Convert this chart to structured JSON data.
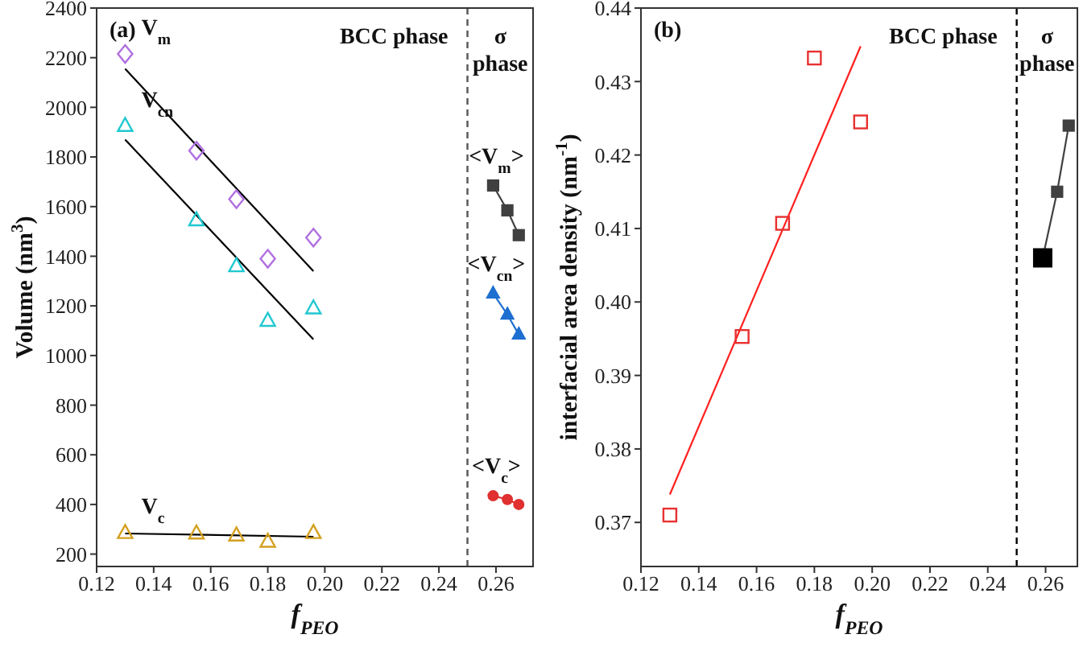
{
  "chart_data": [
    {
      "type": "scatter",
      "title": "(a)",
      "xlabel": "f$_{PEO}$",
      "ylabel": "Volume (nm$^{3}$)",
      "xlim": [
        0.12,
        0.273
      ],
      "ylim": [
        150,
        2400
      ],
      "xticks": [
        0.12,
        0.14,
        0.16,
        0.18,
        {
          "value": 0.2,
          "label": "0.20"
        },
        0.22,
        0.24,
        0.26
      ],
      "yticks": [
        200,
        400,
        600,
        800,
        1000,
        1200,
        1400,
        1600,
        1800,
        2000,
        2200,
        2400
      ],
      "ref_lines": [
        {
          "axis": "x",
          "value": 0.25,
          "label": null,
          "color": "#555555",
          "line_style": "dashed"
        }
      ],
      "annotations": [
        "BCC phase",
        "σ phase"
      ],
      "series": [
        {
          "name": "V$_{m}$",
          "marker": "diamond",
          "color": "#b070e0",
          "x": [
            0.13,
            0.155,
            0.169,
            0.18,
            0.196
          ],
          "values": [
            2215,
            1825,
            1630,
            1390,
            1475
          ]
        },
        {
          "name": "V$_{cn}$",
          "marker": "triangle",
          "color": "#20c8d0",
          "x": [
            0.13,
            0.155,
            0.169,
            0.18,
            0.196
          ],
          "values": [
            1925,
            1545,
            1360,
            1140,
            1190
          ]
        },
        {
          "name": "V$_{c}$",
          "marker": "triangle",
          "color": "#d4a020",
          "x": [
            0.13,
            0.155,
            0.169,
            0.18,
            0.196
          ],
          "values": [
            285,
            283,
            275,
            250,
            285
          ]
        },
        {
          "type": "line",
          "marker": "none",
          "color": "#000000",
          "x": [
            0.13,
            0.196
          ],
          "values": [
            2155,
            1340
          ]
        },
        {
          "type": "line",
          "marker": "none",
          "color": "#000000",
          "x": [
            0.13,
            0.196
          ],
          "values": [
            1870,
            1065
          ]
        },
        {
          "type": "line",
          "marker": "none",
          "color": "#000000",
          "x": [
            0.13,
            0.196
          ],
          "values": [
            283,
            270
          ]
        },
        {
          "name": "<V$_{m}$>",
          "type": "line",
          "marker": "square",
          "color": "#404040",
          "x": [
            0.259,
            0.264,
            0.268
          ],
          "values": [
            1685,
            1585,
            1485
          ]
        },
        {
          "name": "<V$_{cn}$>",
          "type": "line",
          "marker": "triangle",
          "color": "#1f6fd0",
          "x": [
            0.259,
            0.264,
            0.268
          ],
          "values": [
            1250,
            1165,
            1085
          ]
        },
        {
          "name": "<V$_{c}$>",
          "type": "line",
          "marker": "circle",
          "color": "#e03030",
          "x": [
            0.259,
            0.264,
            0.268
          ],
          "values": [
            435,
            420,
            400
          ]
        }
      ]
    },
    {
      "type": "scatter",
      "title": "(b)",
      "xlabel": "f$_{PEO}$",
      "ylabel": "interfacial area density (nm$^{-1}$)",
      "xlim": [
        0.12,
        0.271
      ],
      "ylim": [
        0.364,
        0.44
      ],
      "xticks": [
        0.12,
        0.14,
        0.16,
        0.18,
        {
          "value": 0.2,
          "label": "0.20"
        },
        0.22,
        0.24,
        0.26
      ],
      "yticks": [
        0.37,
        0.38,
        0.39,
        {
          "value": 0.4,
          "label": "0.40"
        },
        0.41,
        0.42,
        0.43,
        0.44
      ],
      "ref_lines": [
        {
          "axis": "x",
          "value": 0.25,
          "label": null,
          "color": "#000000",
          "line_style": "dashed"
        }
      ],
      "annotations": [
        "BCC phase",
        "σ phase"
      ],
      "series": [
        {
          "marker": "square",
          "color": "#e83030",
          "x": [
            0.13,
            0.155,
            0.169,
            0.18,
            0.196
          ],
          "values": [
            0.371,
            0.3953,
            0.4107,
            0.4332,
            0.4245
          ]
        },
        {
          "type": "line",
          "marker": "none",
          "color": "#ff2020",
          "x": [
            0.13,
            0.196
          ],
          "values": [
            0.3738,
            0.4348
          ]
        },
        {
          "type": "line",
          "marker": "square",
          "color": "#404040",
          "colors": [
            "#000000",
            "#404040",
            "#404040"
          ],
          "x": [
            0.259,
            0.264,
            0.268
          ],
          "values": [
            0.406,
            0.415,
            0.424
          ]
        }
      ]
    }
  ]
}
